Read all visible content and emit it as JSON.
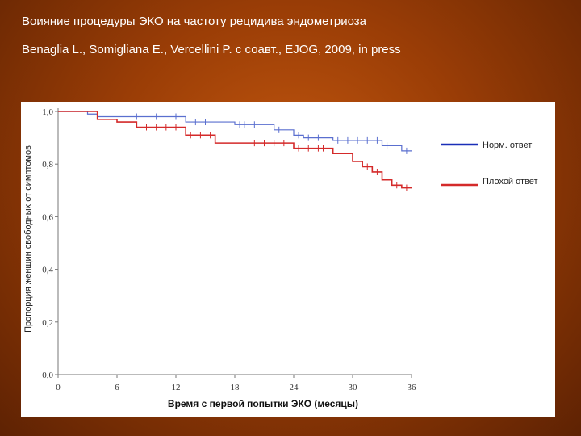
{
  "slide": {
    "title": "Воияние процедуры ЭКО на частоту рецидива эндометриоза",
    "subtitle": "Benaglia L., Somigliana E., Vercellini P. с соавт., EJOG, 2009, in press"
  },
  "chart_data": {
    "type": "line",
    "title": "",
    "xlabel": "Время с первой попытки ЭКО (месяцы)",
    "ylabel": "Пропорция женщин свободных от симптомов",
    "xlim": [
      0,
      36
    ],
    "ylim": [
      0,
      1
    ],
    "x_ticks": [
      "0",
      "6",
      "12",
      "18",
      "24",
      "30",
      "36"
    ],
    "y_ticks": [
      "0,0",
      "0,2",
      "0,4",
      "0,6",
      "0,8",
      "1,0"
    ],
    "grid": false,
    "legend_position": "right",
    "series": [
      {
        "name": "Норм. ответ",
        "color": "#5a6fcf",
        "legend_color": "#1a2fb8",
        "steps": [
          [
            0,
            1.0
          ],
          [
            3,
            0.99
          ],
          [
            4,
            0.98
          ],
          [
            13,
            0.96
          ],
          [
            18,
            0.95
          ],
          [
            22,
            0.93
          ],
          [
            24,
            0.91
          ],
          [
            25,
            0.9
          ],
          [
            28,
            0.89
          ],
          [
            33,
            0.87
          ],
          [
            35,
            0.85
          ],
          [
            36,
            0.85
          ]
        ],
        "censored": [
          [
            8,
            0.98
          ],
          [
            10,
            0.98
          ],
          [
            12,
            0.98
          ],
          [
            14,
            0.96
          ],
          [
            15,
            0.96
          ],
          [
            18.5,
            0.95
          ],
          [
            19,
            0.95
          ],
          [
            20,
            0.95
          ],
          [
            22.5,
            0.93
          ],
          [
            24.5,
            0.91
          ],
          [
            25.5,
            0.9
          ],
          [
            26.5,
            0.9
          ],
          [
            28.5,
            0.89
          ],
          [
            29.5,
            0.89
          ],
          [
            30.5,
            0.89
          ],
          [
            31.5,
            0.89
          ],
          [
            32.5,
            0.89
          ],
          [
            33.5,
            0.87
          ],
          [
            35.5,
            0.85
          ]
        ]
      },
      {
        "name": "Плохой ответ",
        "color": "#d42a2a",
        "legend_color": "#d42a2a",
        "steps": [
          [
            0,
            1.0
          ],
          [
            4,
            0.97
          ],
          [
            6,
            0.96
          ],
          [
            8,
            0.94
          ],
          [
            13,
            0.91
          ],
          [
            16,
            0.88
          ],
          [
            24,
            0.86
          ],
          [
            28,
            0.84
          ],
          [
            30,
            0.81
          ],
          [
            31,
            0.79
          ],
          [
            32,
            0.77
          ],
          [
            33,
            0.74
          ],
          [
            34,
            0.72
          ],
          [
            35,
            0.71
          ],
          [
            36,
            0.71
          ]
        ],
        "censored": [
          [
            9,
            0.94
          ],
          [
            10,
            0.94
          ],
          [
            11,
            0.94
          ],
          [
            12,
            0.94
          ],
          [
            13.5,
            0.91
          ],
          [
            14.5,
            0.91
          ],
          [
            15.5,
            0.91
          ],
          [
            20,
            0.88
          ],
          [
            21,
            0.88
          ],
          [
            22,
            0.88
          ],
          [
            23,
            0.88
          ],
          [
            24.5,
            0.86
          ],
          [
            25.5,
            0.86
          ],
          [
            26.5,
            0.86
          ],
          [
            27,
            0.86
          ],
          [
            31.5,
            0.79
          ],
          [
            32.5,
            0.77
          ],
          [
            34.5,
            0.72
          ],
          [
            35.5,
            0.71
          ]
        ]
      }
    ]
  }
}
